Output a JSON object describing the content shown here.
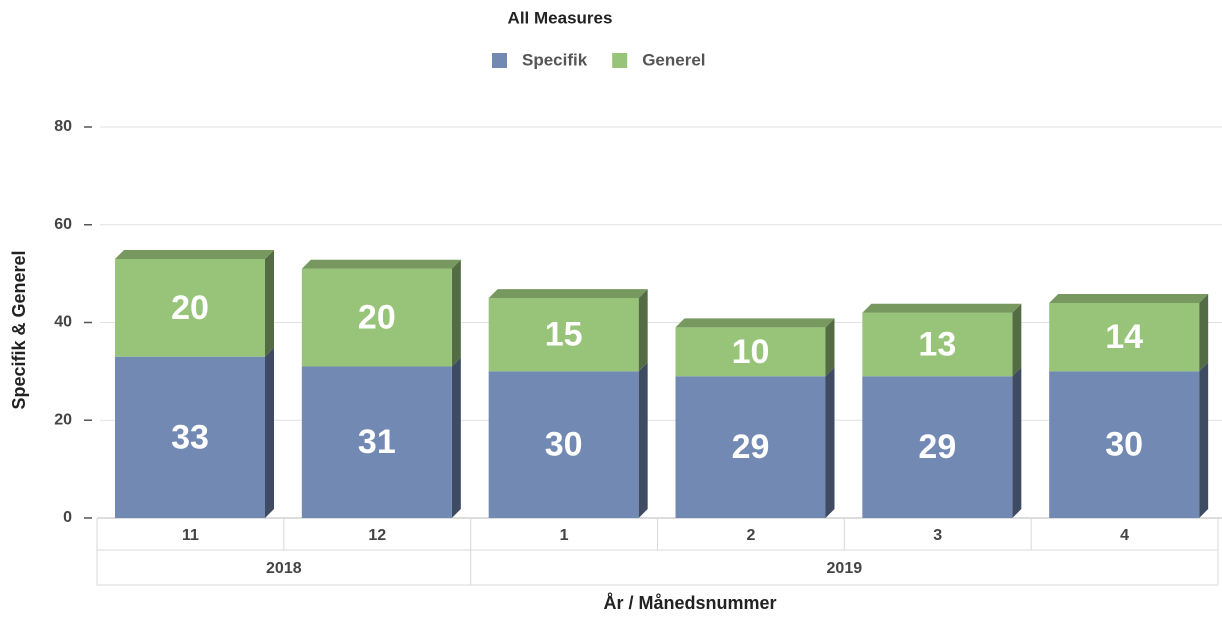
{
  "chart_data": {
    "type": "stacked_bar_3d",
    "title": "All Measures",
    "y_axis_label": "Specifik & Generel",
    "x_axis_label": "År / Månedsnummer",
    "categories": [
      "11",
      "12",
      "1",
      "2",
      "3",
      "4"
    ],
    "x_groups": [
      {
        "label": "2018",
        "span": 2
      },
      {
        "label": "2019",
        "span": 4
      }
    ],
    "series": [
      {
        "name": "Specifik",
        "color": "#7189b3",
        "values": [
          33,
          31,
          30,
          29,
          29,
          30
        ]
      },
      {
        "name": "Generel",
        "color": "#98c47a",
        "values": [
          20,
          20,
          15,
          10,
          13,
          14
        ]
      }
    ],
    "ylim": [
      0,
      80
    ],
    "yticks": [
      0,
      20,
      40,
      60,
      80
    ],
    "grid": true
  }
}
